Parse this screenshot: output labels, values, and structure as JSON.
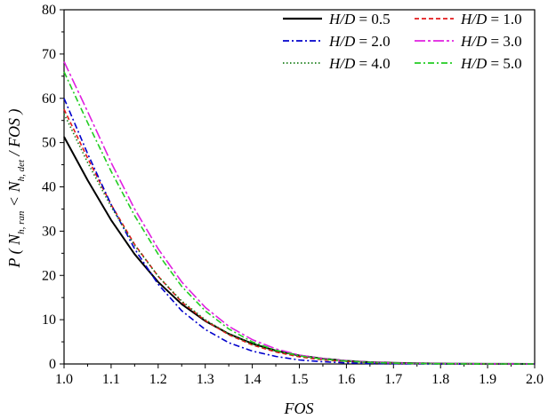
{
  "chart_data": {
    "type": "line",
    "title": "",
    "xlabel": "FOS",
    "ylabel": {
      "prefix": "P ( N",
      "sub1": "h, ran",
      "middle": " < N",
      "sub2": "h, det",
      "suffix": " / FOS )"
    },
    "xlim": [
      1.0,
      2.0
    ],
    "ylim": [
      0,
      80
    ],
    "xticks": [
      "1.0",
      "1.1",
      "1.2",
      "1.3",
      "1.4",
      "1.5",
      "1.6",
      "1.7",
      "1.8",
      "1.9",
      "2.0"
    ],
    "yticks": [
      "0",
      "10",
      "20",
      "30",
      "40",
      "50",
      "60",
      "70",
      "80"
    ],
    "grid": false,
    "legend_position": "top-right",
    "x": [
      1.0,
      1.05,
      1.1,
      1.15,
      1.2,
      1.25,
      1.3,
      1.35,
      1.4,
      1.45,
      1.5,
      1.55,
      1.6,
      1.65,
      1.7,
      1.75,
      1.8,
      1.85,
      1.9,
      1.95,
      2.0
    ],
    "series": [
      {
        "name": "H/D = 0.5",
        "color": "#000000",
        "dash": "solid",
        "values": [
          51.3,
          41.5,
          32.5,
          24.8,
          18.5,
          13.5,
          9.7,
          6.8,
          4.6,
          3.0,
          1.9,
          1.2,
          0.7,
          0.4,
          0.25,
          0.15,
          0.08,
          0.05,
          0.03,
          0.02,
          0.01
        ]
      },
      {
        "name": "H/D = 1.0",
        "color": "#e41a1c",
        "dash": "dash",
        "values": [
          57.5,
          46.5,
          36.0,
          27.0,
          19.8,
          14.0,
          9.8,
          6.6,
          4.3,
          2.7,
          1.6,
          0.95,
          0.55,
          0.3,
          0.17,
          0.09,
          0.05,
          0.03,
          0.02,
          0.01,
          0.0
        ]
      },
      {
        "name": "H/D = 2.0",
        "color": "#0000cc",
        "dash": "dashdot",
        "values": [
          60.0,
          47.5,
          36.0,
          26.0,
          18.0,
          12.0,
          7.8,
          4.8,
          2.9,
          1.7,
          0.9,
          0.5,
          0.25,
          0.12,
          0.06,
          0.03,
          0.01,
          0.01,
          0.0,
          0.0,
          0.0
        ]
      },
      {
        "name": "H/D = 3.0",
        "color": "#e020e0",
        "dash": "longdashdot",
        "values": [
          68.3,
          57.0,
          45.5,
          35.0,
          26.0,
          18.5,
          12.8,
          8.5,
          5.5,
          3.4,
          2.0,
          1.2,
          0.7,
          0.4,
          0.22,
          0.12,
          0.06,
          0.03,
          0.02,
          0.01,
          0.0
        ]
      },
      {
        "name": "H/D = 4.0",
        "color": "#1a7f1a",
        "dash": "dot",
        "values": [
          56.5,
          45.5,
          35.5,
          26.8,
          19.8,
          14.2,
          10.0,
          6.8,
          4.5,
          2.9,
          1.8,
          1.1,
          0.65,
          0.37,
          0.2,
          0.11,
          0.06,
          0.03,
          0.02,
          0.01,
          0.0
        ]
      },
      {
        "name": "H/D = 5.0",
        "color": "#22cc22",
        "dash": "dashdot",
        "values": [
          66.0,
          54.5,
          43.5,
          33.5,
          24.8,
          17.5,
          12.0,
          7.9,
          5.0,
          3.1,
          1.85,
          1.1,
          0.62,
          0.34,
          0.18,
          0.1,
          0.05,
          0.03,
          0.01,
          0.01,
          0.0
        ]
      }
    ]
  }
}
